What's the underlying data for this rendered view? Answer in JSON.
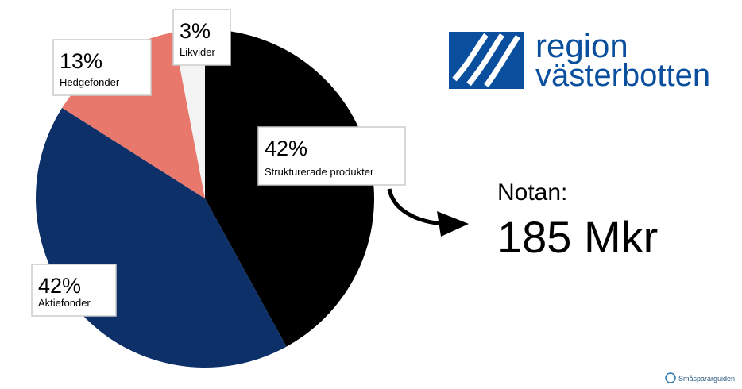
{
  "chart_data": {
    "type": "pie",
    "categories": [
      "Strukturerade produkter",
      "Aktiefonder",
      "Hedgefonder",
      "Likvider"
    ],
    "values": [
      42,
      42,
      13,
      3
    ],
    "value_labels": [
      "42%",
      "42%",
      "13%",
      "3%"
    ],
    "colors": [
      "#000000",
      "#0d3068",
      "#e8786b",
      "#f3f3f3"
    ]
  },
  "annotations": {
    "note_label": "Notan:",
    "note_value": "185 Mkr"
  },
  "logo": {
    "line1": "region",
    "line2": "västerbotten"
  },
  "watermark": "Småspararguiden"
}
